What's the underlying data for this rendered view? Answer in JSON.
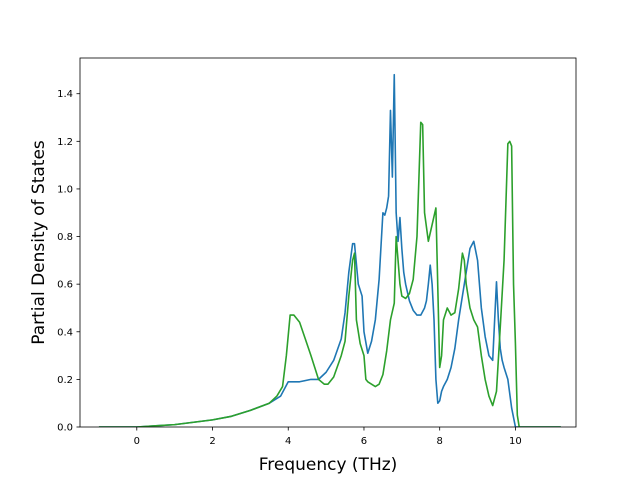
{
  "chart_data": {
    "type": "line",
    "title": "",
    "xlabel": "Frequency (THz)",
    "ylabel": "Partial Density of States",
    "xlim": [
      -1.5,
      11.6
    ],
    "ylim": [
      0,
      1.55
    ],
    "xticks": [
      0,
      2,
      4,
      6,
      8,
      10
    ],
    "yticks": [
      0.0,
      0.2,
      0.4,
      0.6,
      0.8,
      1.0,
      1.2,
      1.4
    ],
    "xtick_labels": [
      "0",
      "2",
      "4",
      "6",
      "8",
      "10"
    ],
    "ytick_labels": [
      "0.0",
      "0.2",
      "0.4",
      "0.6",
      "0.8",
      "1.0",
      "1.2",
      "1.4"
    ],
    "grid": false,
    "legend": "none",
    "series": [
      {
        "color": "#1f77b4",
        "x": [
          -1.0,
          0.0,
          0.5,
          1.0,
          1.5,
          2.0,
          2.5,
          3.0,
          3.5,
          3.8,
          4.0,
          4.3,
          4.6,
          4.8,
          5.0,
          5.2,
          5.4,
          5.5,
          5.6,
          5.7,
          5.75,
          5.85,
          5.95,
          6.0,
          6.1,
          6.2,
          6.3,
          6.4,
          6.5,
          6.55,
          6.6,
          6.65,
          6.7,
          6.75,
          6.8,
          6.85,
          6.9,
          6.95,
          7.0,
          7.05,
          7.1,
          7.2,
          7.3,
          7.4,
          7.5,
          7.6,
          7.65,
          7.7,
          7.75,
          7.8,
          7.85,
          7.9,
          7.95,
          8.0,
          8.05,
          8.1,
          8.2,
          8.3,
          8.4,
          8.5,
          8.6,
          8.7,
          8.8,
          8.9,
          9.0,
          9.1,
          9.2,
          9.3,
          9.4,
          9.5,
          9.55,
          9.6,
          9.65,
          9.7,
          9.8,
          9.9,
          10.0,
          10.1,
          10.2,
          11.2
        ],
        "y": [
          0,
          0,
          0.005,
          0.01,
          0.02,
          0.03,
          0.045,
          0.07,
          0.1,
          0.13,
          0.19,
          0.19,
          0.2,
          0.2,
          0.23,
          0.28,
          0.37,
          0.48,
          0.65,
          0.77,
          0.77,
          0.6,
          0.55,
          0.4,
          0.31,
          0.36,
          0.45,
          0.62,
          0.9,
          0.89,
          0.92,
          0.97,
          1.33,
          1.05,
          1.48,
          0.9,
          0.78,
          0.88,
          0.75,
          0.65,
          0.6,
          0.53,
          0.49,
          0.47,
          0.47,
          0.5,
          0.53,
          0.6,
          0.68,
          0.6,
          0.45,
          0.2,
          0.1,
          0.11,
          0.15,
          0.17,
          0.2,
          0.25,
          0.33,
          0.45,
          0.55,
          0.65,
          0.75,
          0.78,
          0.7,
          0.5,
          0.38,
          0.3,
          0.28,
          0.61,
          0.45,
          0.33,
          0.28,
          0.25,
          0.2,
          0.08,
          0,
          0,
          0,
          0
        ]
      },
      {
        "color": "#2ca02c",
        "x": [
          -1.0,
          0.0,
          0.5,
          1.0,
          1.5,
          2.0,
          2.5,
          3.0,
          3.5,
          3.7,
          3.85,
          3.95,
          4.05,
          4.15,
          4.3,
          4.45,
          4.6,
          4.7,
          4.8,
          4.95,
          5.05,
          5.2,
          5.4,
          5.5,
          5.6,
          5.7,
          5.75,
          5.8,
          5.9,
          6.0,
          6.05,
          6.1,
          6.2,
          6.3,
          6.4,
          6.5,
          6.6,
          6.7,
          6.8,
          6.85,
          6.9,
          6.95,
          7.0,
          7.1,
          7.2,
          7.3,
          7.4,
          7.5,
          7.55,
          7.6,
          7.7,
          7.8,
          7.9,
          8.0,
          8.05,
          8.1,
          8.2,
          8.3,
          8.4,
          8.5,
          8.6,
          8.65,
          8.7,
          8.8,
          8.9,
          9.0,
          9.1,
          9.2,
          9.3,
          9.4,
          9.5,
          9.6,
          9.7,
          9.8,
          9.85,
          9.9,
          9.95,
          10.0,
          10.05,
          10.1,
          10.2,
          11.2
        ],
        "y": [
          0,
          0,
          0.005,
          0.01,
          0.02,
          0.03,
          0.045,
          0.07,
          0.1,
          0.13,
          0.17,
          0.3,
          0.47,
          0.47,
          0.44,
          0.37,
          0.3,
          0.25,
          0.2,
          0.18,
          0.18,
          0.21,
          0.3,
          0.36,
          0.55,
          0.7,
          0.73,
          0.45,
          0.35,
          0.3,
          0.2,
          0.19,
          0.18,
          0.17,
          0.18,
          0.22,
          0.32,
          0.45,
          0.52,
          0.8,
          0.7,
          0.6,
          0.55,
          0.54,
          0.56,
          0.62,
          0.8,
          1.28,
          1.27,
          0.9,
          0.78,
          0.85,
          0.92,
          0.25,
          0.3,
          0.45,
          0.5,
          0.47,
          0.48,
          0.58,
          0.73,
          0.7,
          0.6,
          0.5,
          0.45,
          0.42,
          0.3,
          0.2,
          0.13,
          0.09,
          0.15,
          0.42,
          0.7,
          1.19,
          1.2,
          1.18,
          0.6,
          0.35,
          0.05,
          0,
          0,
          0
        ]
      }
    ]
  }
}
